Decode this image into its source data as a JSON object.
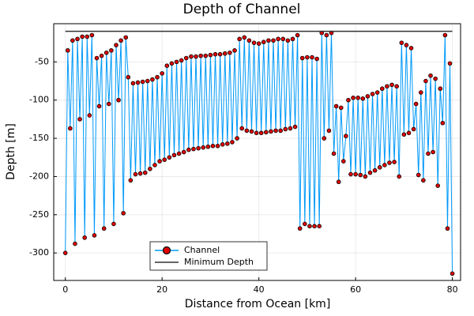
{
  "chart_data": {
    "type": "line",
    "title": "Depth of Channel",
    "x_label": "Distance from Ocean [km]",
    "y_label": "Depth [m]",
    "xlim": [
      -2.4,
      81.7
    ],
    "ylim": [
      -336,
      0
    ],
    "xticks": [
      0,
      20,
      40,
      60,
      80
    ],
    "yticks": [
      -300,
      -250,
      -200,
      -150,
      -100,
      -50
    ],
    "grid": true,
    "legend": "bottom-left",
    "series": [
      {
        "name": "Channel",
        "color": "#009af9",
        "marker_color": "#e00000",
        "x": [
          0,
          0.5,
          1,
          1.5,
          2,
          2.5,
          3,
          3.5,
          4,
          4.5,
          5,
          5.5,
          6,
          6.5,
          7,
          7.5,
          8,
          8.5,
          9,
          9.5,
          10,
          10.5,
          11,
          11.5,
          12,
          12.5,
          13,
          13.5,
          14,
          14.5,
          15,
          15.5,
          16,
          16.5,
          17,
          17.5,
          18,
          18.5,
          19,
          19.5,
          20,
          20.5,
          21,
          21.5,
          22,
          22.5,
          23,
          23.5,
          24,
          24.5,
          25,
          25.5,
          26,
          26.5,
          27,
          27.5,
          28,
          28.5,
          29,
          29.5,
          30,
          30.5,
          31,
          31.5,
          32,
          32.5,
          33,
          33.5,
          34,
          34.5,
          35,
          35.5,
          36,
          36.5,
          37,
          37.5,
          38,
          38.5,
          39,
          39.5,
          40,
          40.5,
          41,
          41.5,
          42,
          42.5,
          43,
          43.5,
          44,
          44.5,
          45,
          45.5,
          46,
          46.5,
          47,
          47.5,
          48,
          48.5,
          49,
          49.5,
          50,
          50.5,
          51,
          51.5,
          52,
          52.5,
          53,
          53.5,
          54,
          54.5,
          55,
          55.5,
          56,
          56.5,
          57,
          57.5,
          58,
          58.5,
          59,
          59.5,
          60,
          60.5,
          61,
          61.5,
          62,
          62.5,
          63,
          63.5,
          64,
          64.5,
          65,
          65.5,
          66,
          66.5,
          67,
          67.5,
          68,
          68.5,
          69,
          69.5,
          70,
          70.5,
          71,
          71.5,
          72,
          72.5,
          73,
          73.5,
          74,
          74.5,
          75,
          75.5,
          76,
          76.5,
          77,
          77.5,
          78,
          78.5,
          79,
          79.5,
          80
        ],
        "values": [
          -300,
          -35,
          -137,
          -22,
          -288,
          -20,
          -125,
          -17,
          -280,
          -17,
          -120,
          -15,
          -277,
          -45,
          -108,
          -42,
          -268,
          -38,
          -105,
          -35,
          -262,
          -28,
          -100,
          -22,
          -248,
          -18,
          -70,
          -205,
          -78,
          -197,
          -77,
          -196,
          -76,
          -195,
          -75,
          -190,
          -73,
          -185,
          -70,
          -180,
          -65,
          -178,
          -55,
          -175,
          -52,
          -172,
          -50,
          -170,
          -48,
          -168,
          -45,
          -165,
          -43,
          -164,
          -43,
          -163,
          -42,
          -162,
          -42,
          -161,
          -41,
          -160,
          -40,
          -160,
          -40,
          -158,
          -39,
          -157,
          -38,
          -155,
          -35,
          -150,
          -20,
          -137,
          -18,
          -140,
          -22,
          -141,
          -25,
          -143,
          -26,
          -143,
          -24,
          -142,
          -22,
          -141,
          -22,
          -140,
          -20,
          -140,
          -20,
          -138,
          -22,
          -137,
          -20,
          -135,
          -15,
          -268,
          -45,
          -262,
          -44,
          -265,
          -44,
          -265,
          -46,
          -265,
          -12,
          -150,
          -15,
          -140,
          -12,
          -170,
          -108,
          -207,
          -110,
          -180,
          -147,
          -100,
          -197,
          -97,
          -197,
          -97,
          -198,
          -98,
          -200,
          -95,
          -195,
          -92,
          -192,
          -90,
          -188,
          -85,
          -185,
          -82,
          -182,
          -80,
          -181,
          -82,
          -200,
          -25,
          -145,
          -28,
          -143,
          -32,
          -138,
          -105,
          -198,
          -90,
          -205,
          -75,
          -170,
          -68,
          -168,
          -72,
          -212,
          -85,
          -130,
          -15,
          -268,
          -52,
          -327
        ]
      },
      {
        "name": "Minimum Depth",
        "color": "#333333",
        "x": [
          0,
          80
        ],
        "values": [
          -10,
          -10
        ]
      }
    ]
  }
}
